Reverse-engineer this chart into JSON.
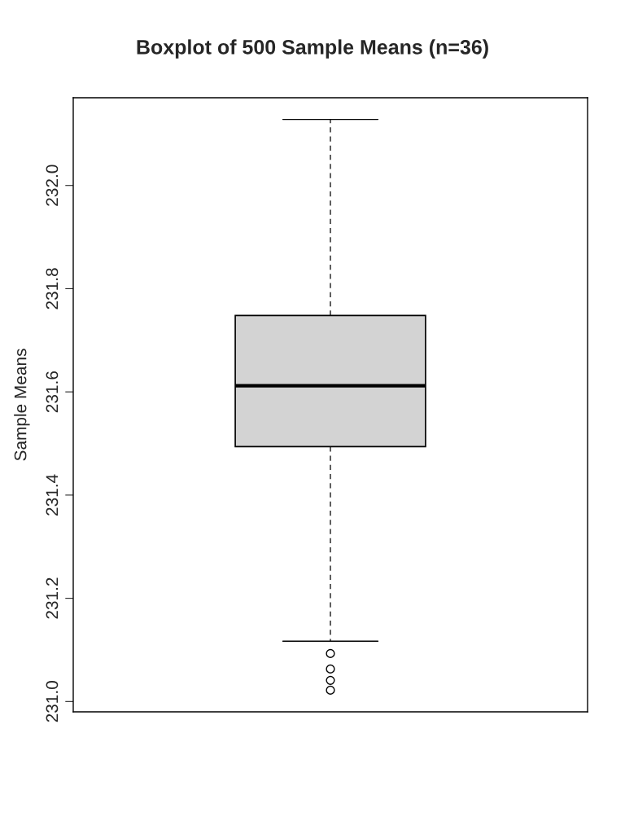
{
  "chart_data": {
    "type": "box",
    "title": "Boxplot of 500 Sample Means (n=36)",
    "ylabel": "Sample Means",
    "categories": [
      null
    ],
    "boxes": [
      {
        "low": 231.117,
        "q1": 231.494,
        "median": 231.612,
        "q3": 231.748,
        "high": 232.128,
        "outliers": [
          231.093,
          231.063,
          231.041,
          231.022
        ]
      }
    ],
    "color": "#d3d3d3",
    "ylim": [
      230.98,
      232.17
    ],
    "yticks": [
      {
        "value": 231.0,
        "label": "231.0"
      },
      {
        "value": 231.2,
        "label": "231.2"
      },
      {
        "value": 231.4,
        "label": "231.4"
      },
      {
        "value": 231.6,
        "label": "231.6"
      },
      {
        "value": 231.8,
        "label": "231.8"
      },
      {
        "value": 232.0,
        "label": "232.0"
      }
    ],
    "tick_labels": "y"
  }
}
